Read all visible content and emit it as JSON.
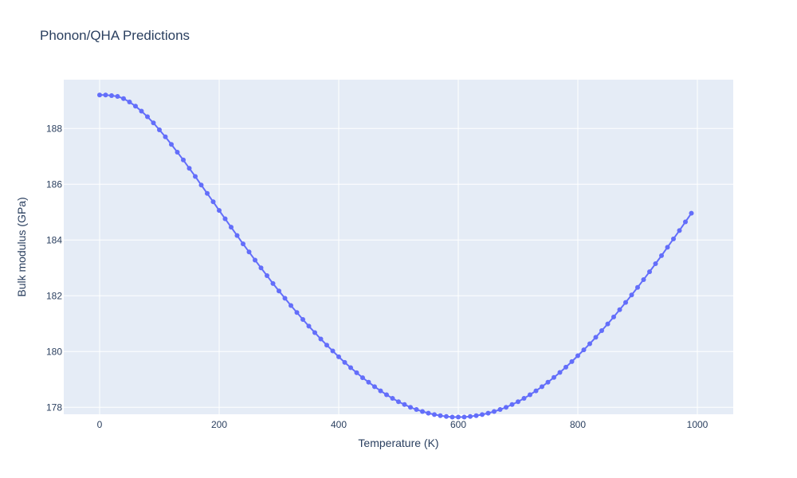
{
  "chart_data": {
    "type": "line",
    "title": "Phonon/QHA Predictions",
    "xlabel": "Temperature (K)",
    "ylabel": "Bulk modulus (GPa)",
    "xlim": [
      -60,
      1060
    ],
    "ylim": [
      177.75,
      189.75
    ],
    "x_ticks": [
      0,
      200,
      400,
      600,
      800,
      1000
    ],
    "y_ticks": [
      178,
      180,
      182,
      184,
      186,
      188
    ],
    "grid": true,
    "legend": "none",
    "colors": {
      "plot_bg": "#e5ecf6",
      "grid": "#ffffff",
      "series": "#636efa",
      "text": "#2a3f5f"
    },
    "series": [
      {
        "mode": "lines+markers",
        "x": [
          0,
          10,
          20,
          30,
          40,
          50,
          60,
          70,
          80,
          90,
          100,
          110,
          120,
          130,
          140,
          150,
          160,
          170,
          180,
          190,
          200,
          210,
          220,
          230,
          240,
          250,
          260,
          270,
          280,
          290,
          300,
          310,
          320,
          330,
          340,
          350,
          360,
          370,
          380,
          390,
          400,
          410,
          420,
          430,
          440,
          450,
          460,
          470,
          480,
          490,
          500,
          510,
          520,
          530,
          540,
          550,
          560,
          570,
          580,
          590,
          600,
          610,
          620,
          630,
          640,
          650,
          660,
          670,
          680,
          690,
          700,
          710,
          720,
          730,
          740,
          750,
          760,
          770,
          780,
          790,
          800,
          810,
          820,
          830,
          840,
          850,
          860,
          870,
          880,
          890,
          900,
          910,
          920,
          930,
          940,
          950,
          960,
          970,
          980,
          990
        ],
        "y": [
          189.2,
          189.2,
          189.18,
          189.15,
          189.07,
          188.95,
          188.8,
          188.62,
          188.42,
          188.2,
          187.95,
          187.7,
          187.43,
          187.15,
          186.87,
          186.57,
          186.28,
          185.97,
          185.67,
          185.37,
          185.06,
          184.76,
          184.46,
          184.16,
          183.86,
          183.57,
          183.28,
          183.0,
          182.72,
          182.44,
          182.17,
          181.91,
          181.65,
          181.4,
          181.15,
          180.91,
          180.68,
          180.45,
          180.23,
          180.02,
          179.81,
          179.61,
          179.42,
          179.24,
          179.06,
          178.9,
          178.74,
          178.59,
          178.45,
          178.32,
          178.2,
          178.1,
          178.0,
          177.92,
          177.85,
          177.79,
          177.74,
          177.7,
          177.67,
          177.65,
          177.65,
          177.65,
          177.67,
          177.7,
          177.74,
          177.79,
          177.85,
          177.92,
          178.0,
          178.1,
          178.2,
          178.32,
          178.45,
          178.59,
          178.74,
          178.9,
          179.07,
          179.25,
          179.44,
          179.64,
          179.85,
          180.06,
          180.28,
          180.51,
          180.75,
          180.99,
          181.24,
          181.5,
          181.76,
          182.03,
          182.3,
          182.58,
          182.86,
          183.15,
          183.44,
          183.74,
          184.04,
          184.34,
          184.65,
          184.96
        ]
      }
    ]
  }
}
